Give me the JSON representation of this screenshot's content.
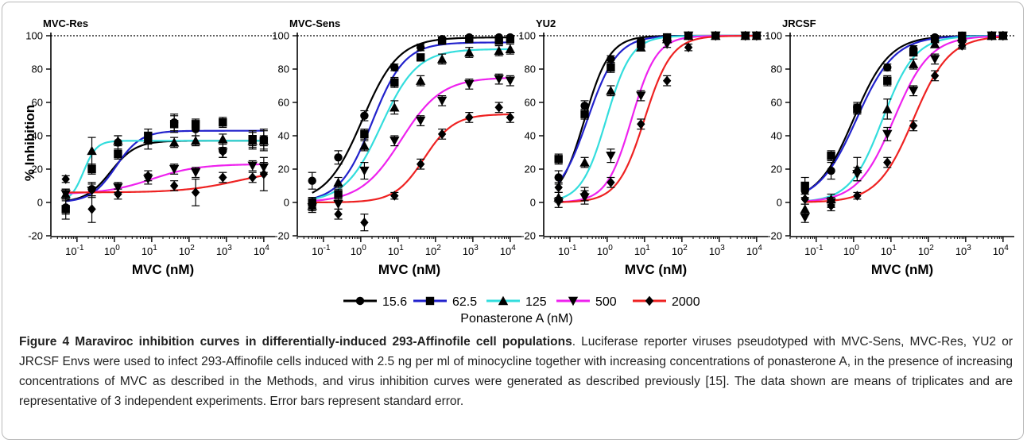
{
  "figure": {
    "ylabel": "% Inhibition",
    "legend_title": "Ponasterone A (nM)",
    "series_colors": [
      "#000000",
      "#2222cc",
      "#33dddd",
      "#ee22ee",
      "#ee2222"
    ],
    "series_markers": [
      "circle",
      "square",
      "triangle-up",
      "triangle-down",
      "diamond"
    ]
  },
  "caption": {
    "label": "Figure 4 Maraviroc inhibition curves in differentially-induced 293-Affinofile cell populations",
    "text": ". Luciferase reporter viruses pseudotyped with MVC-Sens, MVC-Res, YU2 or JRCSF Envs were used to infect 293-Affinofile cells induced with 2.5 ng per ml of minocycline together with increasing concentrations of ponasterone A, in the presence of increasing concentrations of MVC as described in the Methods, and virus inhibition curves were generated as described previously [15]. The data shown are means of triplicates and are representative of 3 independent experiments. Error bars represent standard error."
  },
  "chart_data": [
    {
      "type": "scatter",
      "title": "MVC-Res",
      "xlabel": "MVC (nM)",
      "ylabel": "% Inhibition",
      "x_scale": "log",
      "xlim": [
        0.02,
        20000
      ],
      "ylim": [
        -20,
        100
      ],
      "yticks": [
        -20,
        0,
        20,
        40,
        60,
        80,
        100
      ],
      "xticks": [
        "10-1",
        "100",
        "101",
        "102",
        "103",
        "104"
      ],
      "reference_line": 100,
      "x": [
        0.05,
        0.25,
        1.25,
        8,
        40,
        150,
        800,
        5000,
        10000
      ],
      "series": [
        {
          "name": "15.6",
          "values": [
            -3,
            8,
            36,
            37,
            48,
            44,
            31,
            37,
            38
          ],
          "errors": [
            4,
            4,
            4,
            5,
            5,
            4,
            4,
            5,
            6
          ]
        },
        {
          "name": "62.5",
          "values": [
            -4,
            20,
            29,
            40,
            47,
            47,
            48,
            38,
            37
          ],
          "errors": [
            6,
            3,
            3,
            4,
            5,
            3,
            3,
            5,
            6
          ]
        },
        {
          "name": "125",
          "values": [
            5,
            31,
            37,
            38,
            36,
            37,
            38,
            37,
            37
          ],
          "errors": [
            3,
            8,
            3,
            3,
            3,
            3,
            3,
            3,
            3
          ]
        },
        {
          "name": "500",
          "values": [
            5,
            7,
            9,
            14,
            20,
            18,
            30,
            22,
            21
          ],
          "errors": [
            3,
            4,
            3,
            3,
            3,
            3,
            3,
            3,
            3
          ]
        },
        {
          "name": "2000",
          "values": [
            14,
            -4,
            5,
            16,
            10,
            6,
            15,
            15,
            17
          ],
          "errors": [
            2,
            8,
            3,
            3,
            3,
            8,
            3,
            3,
            10
          ]
        }
      ],
      "fits": [
        {
          "bottom": 0,
          "top": 37,
          "ec50": 0.8,
          "hill": 1.3
        },
        {
          "bottom": 0,
          "top": 43,
          "ec50": 1.1,
          "hill": 1.3
        },
        {
          "bottom": 0,
          "top": 37,
          "ec50": 0.15,
          "hill": 2.5
        },
        {
          "bottom": 5,
          "top": 23,
          "ec50": 10,
          "hill": 0.7
        },
        {
          "bottom": 6,
          "top": 20,
          "ec50": 2000,
          "hill": 0.6
        }
      ]
    },
    {
      "type": "scatter",
      "title": "MVC-Sens",
      "xlabel": "MVC (nM)",
      "ylabel": "% Inhibition",
      "x_scale": "log",
      "xlim": [
        0.02,
        20000
      ],
      "ylim": [
        -20,
        100
      ],
      "yticks": [
        -20,
        0,
        20,
        40,
        60,
        80,
        100
      ],
      "xticks": [
        "10-1",
        "100",
        "101",
        "102",
        "103",
        "104"
      ],
      "reference_line": 100,
      "x": [
        0.05,
        0.25,
        1.25,
        8,
        40,
        150,
        800,
        5000,
        10000
      ],
      "series": [
        {
          "name": "15.6",
          "values": [
            13,
            27,
            52,
            81,
            93,
            98,
            99,
            99,
            99
          ],
          "errors": [
            5,
            4,
            3,
            2,
            2,
            1,
            1,
            1,
            1
          ]
        },
        {
          "name": "62.5",
          "values": [
            0,
            5,
            41,
            72,
            87,
            97,
            98,
            97,
            98
          ],
          "errors": [
            3,
            3,
            3,
            3,
            2,
            2,
            1,
            1,
            1
          ]
        },
        {
          "name": "125",
          "values": [
            -2,
            12,
            34,
            57,
            73,
            86,
            90,
            91,
            92
          ],
          "errors": [
            3,
            3,
            3,
            4,
            3,
            3,
            3,
            3,
            3
          ]
        },
        {
          "name": "500",
          "values": [
            -3,
            -1,
            19,
            37,
            49,
            61,
            71,
            74,
            73
          ],
          "errors": [
            3,
            3,
            5,
            3,
            3,
            3,
            3,
            3,
            3
          ]
        },
        {
          "name": "2000",
          "values": [
            0,
            -7,
            -12,
            4,
            23,
            41,
            51,
            57,
            51
          ],
          "errors": [
            3,
            3,
            5,
            2,
            3,
            3,
            3,
            3,
            3
          ]
        }
      ],
      "fits": [
        {
          "bottom": 0,
          "top": 99,
          "ec50": 1.1,
          "hill": 0.9
        },
        {
          "bottom": 0,
          "top": 96,
          "ec50": 2,
          "hill": 1.0
        },
        {
          "bottom": 0,
          "top": 92,
          "ec50": 3.5,
          "hill": 0.9
        },
        {
          "bottom": 0,
          "top": 75,
          "ec50": 12,
          "hill": 0.8
        },
        {
          "bottom": 0,
          "top": 53,
          "ec50": 50,
          "hill": 1.1
        }
      ]
    },
    {
      "type": "scatter",
      "title": "YU2",
      "xlabel": "MVC (nM)",
      "ylabel": "% Inhibition",
      "x_scale": "log",
      "xlim": [
        0.02,
        20000
      ],
      "ylim": [
        -20,
        100
      ],
      "yticks": [
        -20,
        0,
        20,
        40,
        60,
        80,
        100
      ],
      "xticks": [
        "10-1",
        "100",
        "101",
        "102",
        "103",
        "104"
      ],
      "reference_line": 100,
      "x": [
        0.05,
        0.25,
        1.25,
        8,
        40,
        150,
        800,
        5000,
        10000
      ],
      "series": [
        {
          "name": "15.6",
          "values": [
            15,
            58,
            86,
            97,
            99,
            100,
            100,
            100,
            100
          ],
          "errors": [
            4,
            3,
            2,
            1,
            1,
            1,
            1,
            1,
            1
          ]
        },
        {
          "name": "62.5",
          "values": [
            26,
            53,
            81,
            95,
            99,
            100,
            100,
            100,
            100
          ],
          "errors": [
            3,
            3,
            3,
            2,
            1,
            1,
            1,
            1,
            1
          ]
        },
        {
          "name": "125",
          "values": [
            3,
            24,
            67,
            93,
            98,
            100,
            100,
            100,
            100
          ],
          "errors": [
            3,
            3,
            3,
            2,
            1,
            1,
            1,
            1,
            1
          ]
        },
        {
          "name": "500",
          "values": [
            0,
            3,
            28,
            64,
            95,
            100,
            100,
            100,
            100
          ],
          "errors": [
            3,
            4,
            4,
            3,
            2,
            1,
            1,
            1,
            1
          ]
        },
        {
          "name": "2000",
          "values": [
            9,
            5,
            12,
            47,
            73,
            93,
            100,
            100,
            100
          ],
          "errors": [
            3,
            4,
            3,
            3,
            3,
            2,
            1,
            1,
            1
          ]
        }
      ],
      "fits": [
        {
          "bottom": 0,
          "top": 100,
          "ec50": 0.25,
          "hill": 1.3
        },
        {
          "bottom": 0,
          "top": 100,
          "ec50": 0.3,
          "hill": 1.1
        },
        {
          "bottom": 0,
          "top": 100,
          "ec50": 0.95,
          "hill": 1.3
        },
        {
          "bottom": 0,
          "top": 100,
          "ec50": 4.5,
          "hill": 1.3
        },
        {
          "bottom": 0,
          "top": 100,
          "ec50": 10,
          "hill": 1.2
        }
      ]
    },
    {
      "type": "scatter",
      "title": "JRCSF",
      "xlabel": "MVC (nM)",
      "ylabel": "% Inhibition",
      "x_scale": "log",
      "xlim": [
        0.02,
        20000
      ],
      "ylim": [
        -20,
        100
      ],
      "yticks": [
        -20,
        0,
        20,
        40,
        60,
        80,
        100
      ],
      "xticks": [
        "10-1",
        "100",
        "101",
        "102",
        "103",
        "104"
      ],
      "reference_line": 100,
      "x": [
        0.05,
        0.25,
        1.25,
        8,
        40,
        150,
        800,
        5000,
        10000
      ],
      "series": [
        {
          "name": "15.6",
          "values": [
            7,
            19,
            57,
            81,
            92,
            99,
            100,
            100,
            100
          ],
          "errors": [
            4,
            5,
            3,
            2,
            2,
            1,
            1,
            1,
            1
          ]
        },
        {
          "name": "62.5",
          "values": [
            10,
            28,
            56,
            73,
            90,
            98,
            100,
            100,
            100
          ],
          "errors": [
            5,
            3,
            3,
            3,
            2,
            1,
            1,
            1,
            1
          ]
        },
        {
          "name": "125",
          "values": [
            -4,
            2,
            20,
            56,
            83,
            95,
            99,
            100,
            100
          ],
          "errors": [
            3,
            3,
            7,
            6,
            3,
            2,
            1,
            1,
            1
          ]
        },
        {
          "name": "500",
          "values": [
            -9,
            0,
            17,
            41,
            67,
            86,
            95,
            100,
            100
          ],
          "errors": [
            3,
            3,
            4,
            4,
            3,
            3,
            2,
            1,
            1
          ]
        },
        {
          "name": "2000",
          "values": [
            2,
            -2,
            4,
            24,
            46,
            76,
            94,
            100,
            100
          ],
          "errors": [
            3,
            3,
            2,
            3,
            3,
            3,
            2,
            1,
            1
          ]
        }
      ],
      "fits": [
        {
          "bottom": 0,
          "top": 100,
          "ec50": 1.0,
          "hill": 0.9
        },
        {
          "bottom": 0,
          "top": 100,
          "ec50": 1.2,
          "hill": 0.85
        },
        {
          "bottom": 0,
          "top": 100,
          "ec50": 6,
          "hill": 1.0
        },
        {
          "bottom": 0,
          "top": 100,
          "ec50": 12,
          "hill": 0.9
        },
        {
          "bottom": 0,
          "top": 100,
          "ec50": 40,
          "hill": 0.9
        }
      ]
    }
  ]
}
